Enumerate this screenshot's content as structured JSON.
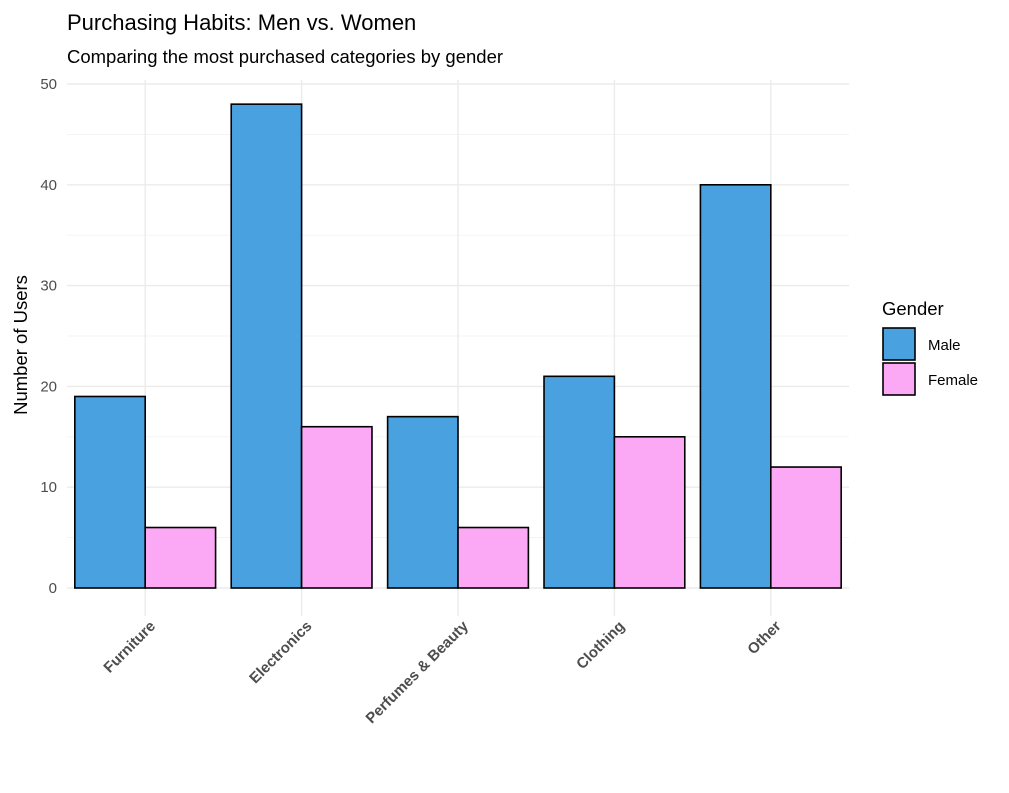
{
  "chart_data": {
    "type": "bar",
    "title": "Purchasing Habits: Men vs. Women",
    "subtitle": "Comparing the most purchased categories by gender",
    "xlabel": "",
    "ylabel": "Number of Users",
    "categories": [
      "Furniture",
      "Electronics",
      "Perfumes & Beauty",
      "Clothing",
      "Other"
    ],
    "series": [
      {
        "name": "Male",
        "values": [
          19,
          48,
          17,
          21,
          40
        ],
        "color": "#4aa1e0"
      },
      {
        "name": "Female",
        "values": [
          6,
          16,
          6,
          15,
          12
        ],
        "color": "#fca9f5"
      }
    ],
    "ylim": [
      0,
      50
    ],
    "yticks": [
      0,
      10,
      20,
      30,
      40,
      50
    ],
    "grid": true,
    "legend": {
      "title": "Gender",
      "placement": "right"
    },
    "x_tick_rotation": -45
  }
}
